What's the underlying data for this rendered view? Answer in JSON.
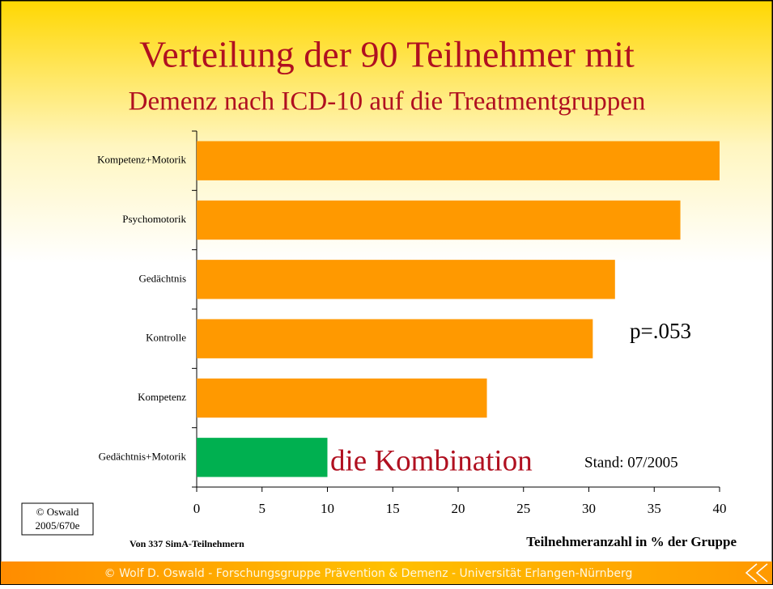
{
  "chart_data": {
    "type": "bar",
    "orientation": "horizontal",
    "title": "Verteilung der 90 Teilnehmer mit",
    "subtitle": "Demenz nach ICD-10 auf die Treatmentgruppen",
    "categories": [
      "Kompetenz+Motorik",
      "Psychomotorik",
      "Gedächtnis",
      "Kontrolle",
      "Kompetenz",
      "Gedächtnis+Motorik"
    ],
    "values": [
      40,
      37,
      32,
      30.3,
      22.2,
      10
    ],
    "colors": [
      "#ff9900",
      "#ff9900",
      "#ff9900",
      "#ff9900",
      "#ff9900",
      "#00b050"
    ],
    "xlim": [
      0,
      40
    ],
    "xticks": [
      0,
      5,
      10,
      15,
      20,
      25,
      30,
      35,
      40
    ],
    "x_label": "Teilnehmeranzahl in % der Gruppe",
    "annotations": [
      "p=.053",
      "die Kombination",
      "Stand: 07/2005",
      "Von 337 SimA-Teilnehmern"
    ],
    "copyright": [
      "© Oswald",
      "2005/670e"
    ],
    "footer": "© Wolf  D. Oswald - Forschungsgruppe Prävention & Demenz - Universität Erlangen-Nürnberg"
  }
}
